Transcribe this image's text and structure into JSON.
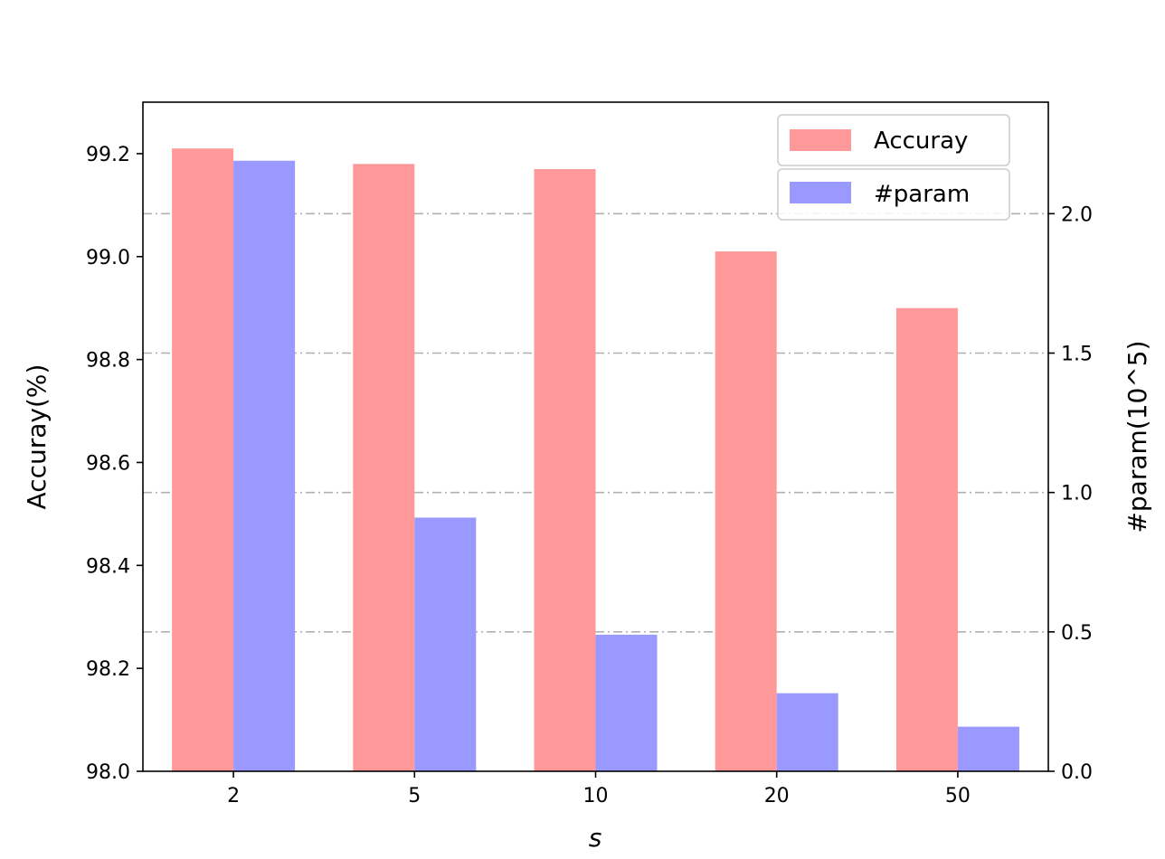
{
  "chart_data": {
    "type": "bar",
    "categories": [
      "2",
      "5",
      "10",
      "20",
      "50"
    ],
    "xlabel": "s",
    "ylabel_left": "Accuray(%)",
    "ylabel_right": "#param(10^5)",
    "ylim_left": [
      98.0,
      99.3
    ],
    "ylim_right": [
      0.0,
      2.4
    ],
    "yticks_left": [
      "98.0",
      "98.2",
      "98.4",
      "98.6",
      "98.8",
      "99.0",
      "99.2"
    ],
    "yticks_right": [
      "0.0",
      "0.5",
      "1.0",
      "1.5",
      "2.0"
    ],
    "grid": "right-axis horizontal, dash-dot, gray",
    "legend_position": "top-right",
    "series": [
      {
        "name": "Accuray",
        "axis": "left",
        "color": "#ff9999",
        "values": [
          99.21,
          99.18,
          99.17,
          99.01,
          98.9
        ]
      },
      {
        "name": "#param",
        "axis": "right",
        "color": "#9999ff",
        "values": [
          2.19,
          0.91,
          0.49,
          0.28,
          0.16
        ]
      }
    ]
  }
}
